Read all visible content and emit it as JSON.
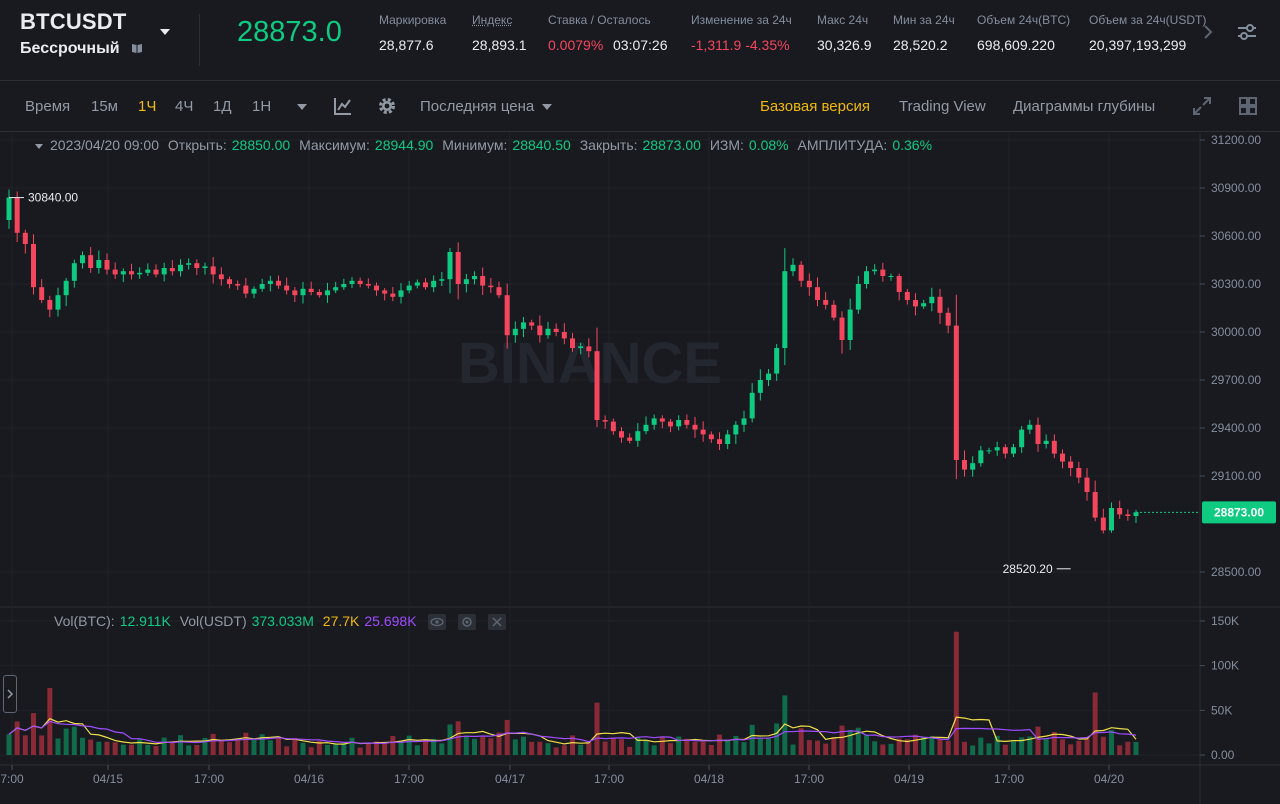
{
  "header": {
    "symbol": "BTCUSDT",
    "contract_type": "Бессрочный",
    "last_price": "28873.0",
    "stats": [
      {
        "label": "Маркировка",
        "value": "28,877.6"
      },
      {
        "label": "Индекс",
        "value": "28,893.1"
      },
      {
        "label": "Ставка / Осталось",
        "value_rate": "0.0079%",
        "value_time": "03:07:26"
      },
      {
        "label": "Изменение за 24ч",
        "value": "-1,311.9 -4.35%"
      },
      {
        "label": "Макс 24ч",
        "value": "30,326.9"
      },
      {
        "label": "Мин за 24ч",
        "value": "28,520.2"
      },
      {
        "label": "Объем 24ч(BTC)",
        "value": "698,609.220"
      },
      {
        "label": "Объем за 24ч(USDT)",
        "value": "20,397,193,299"
      }
    ]
  },
  "toolbar": {
    "time_label": "Время",
    "intervals": [
      "15м",
      "1Ч",
      "4Ч",
      "1Д",
      "1Н"
    ],
    "active_interval": "1Ч",
    "price_type": "Последняя цена",
    "views": [
      "Базовая версия",
      "Trading View",
      "Диаграммы глубины"
    ],
    "active_view": "Базовая версия"
  },
  "ohlc_info": {
    "date": "2023/04/20 09:00",
    "open_label": "Открыть:",
    "open": "28850.00",
    "high_label": "Максимум:",
    "high": "28944.90",
    "low_label": "Минимум:",
    "low": "28840.50",
    "close_label": "Закрыть:",
    "close": "28873.00",
    "change_label": "ИЗМ:",
    "change": "0.08%",
    "amplitude_label": "АМПЛИТУДА:",
    "amplitude": "0.36%"
  },
  "volume_info": {
    "btc_label": "Vol(BTC):",
    "btc": "12.911K",
    "usdt_label": "Vol(USDT)",
    "usdt": "373.033M",
    "ma1": "27.7K",
    "ma2": "25.698K"
  },
  "watermark": "BINANCE",
  "colors": {
    "up": "#0ecb81",
    "down": "#f6465d",
    "accent": "#f0b90b",
    "bg": "#181a20",
    "ma1": "#f0e04a",
    "ma2": "#a04cff"
  },
  "chart_data": {
    "type": "candlestick",
    "price_axis_ticks": [
      "31200.00",
      "30900.00",
      "30600.00",
      "30300.00",
      "30000.00",
      "29700.00",
      "29400.00",
      "29100.00",
      "28500.00"
    ],
    "price_ylim": [
      28300,
      31300
    ],
    "volume_axis_ticks": [
      "150K",
      "100K",
      "50K",
      "0.00"
    ],
    "time_axis_ticks": [
      "7:00",
      "04/15",
      "17:00",
      "04/16",
      "17:00",
      "04/17",
      "17:00",
      "04/18",
      "17:00",
      "04/19",
      "17:00",
      "04/20"
    ],
    "current_price_label": "28873.00",
    "max_marker": "30840.00",
    "min_marker": "28520.20",
    "closes": [
      30840,
      30620,
      30550,
      30280,
      30200,
      30140,
      30230,
      30320,
      30430,
      30480,
      30400,
      30450,
      30390,
      30360,
      30380,
      30360,
      30370,
      30390,
      30360,
      30400,
      30380,
      30420,
      30430,
      30400,
      30410,
      30360,
      30330,
      30300,
      30290,
      30240,
      30270,
      30300,
      30320,
      30290,
      30260,
      30230,
      30270,
      30250,
      30230,
      30260,
      30280,
      30300,
      30320,
      30300,
      30290,
      30260,
      30240,
      30220,
      30260,
      30290,
      30310,
      30280,
      30320,
      30330,
      30500,
      30300,
      30330,
      30350,
      30290,
      30280,
      30230,
      29980,
      30020,
      30060,
      30040,
      29980,
      30020,
      30000,
      29960,
      29900,
      29910,
      29880,
      29450,
      29440,
      29380,
      29340,
      29320,
      29380,
      29420,
      29460,
      29440,
      29410,
      29450,
      29420,
      29390,
      29360,
      29330,
      29300,
      29360,
      29420,
      29460,
      29620,
      29700,
      29740,
      29900,
      30380,
      30420,
      30320,
      30280,
      30200,
      30170,
      30090,
      29950,
      30140,
      30300,
      30380,
      30390,
      30350,
      30350,
      30250,
      30200,
      30160,
      30180,
      30220,
      30120,
      30040,
      29200,
      29140,
      29180,
      29260,
      29260,
      29280,
      29240,
      29280,
      29390,
      29420,
      29300,
      29320,
      29240,
      29190,
      29150,
      29090,
      29000,
      28840,
      28760,
      28900,
      28860,
      28850,
      28873
    ]
  }
}
